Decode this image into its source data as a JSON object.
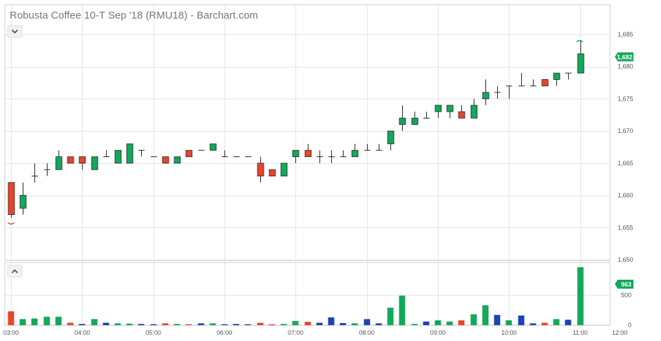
{
  "title": "Robusta Coffee 10-T Sep '18 (RMU18) - Barchart.com",
  "last_price_label": "1,682",
  "last_volume_label": "963",
  "colors": {
    "up": "#13a85a",
    "down": "#e8452c",
    "flat": "#1c44b0",
    "tag": "#13a85a",
    "grid": "#e4e4e4"
  },
  "icons": {
    "collapse_price": "chevron-down-icon",
    "collapse_volume": "chevron-up-icon"
  },
  "chart_data": {
    "type": "candlestick",
    "x_tick_labels": [
      "03:00",
      "04:00",
      "05:00",
      "06:00",
      "07:00",
      "08:00",
      "09:00",
      "10:00",
      "11:00",
      "12:00"
    ],
    "price_axis": {
      "ticks": [
        1650,
        1655,
        1660,
        1665,
        1670,
        1675,
        1680,
        1685
      ],
      "tick_labels": [
        "1,650",
        "1,655",
        "1,660",
        "1,665",
        "1,670",
        "1,675",
        "1,680",
        "1,685"
      ],
      "range": [
        1650,
        1689.5
      ]
    },
    "volume_axis": {
      "ticks": [
        0,
        500
      ],
      "tick_labels": [
        "0",
        "500"
      ],
      "range": [
        0,
        1030
      ]
    },
    "bar_interval_minutes": 10,
    "series": [
      {
        "t": "03:00",
        "o": 1662,
        "h": 1662,
        "l": 1656.5,
        "c": 1657,
        "v": 230,
        "vc": "down"
      },
      {
        "t": "03:10",
        "o": 1658,
        "h": 1662,
        "l": 1657,
        "c": 1660,
        "v": 100,
        "vc": "up"
      },
      {
        "t": "03:20",
        "o": 1663,
        "h": 1665,
        "l": 1662,
        "c": 1663,
        "v": 110,
        "vc": "up"
      },
      {
        "t": "03:30",
        "o": 1664,
        "h": 1665,
        "l": 1663,
        "c": 1664,
        "v": 140,
        "vc": "up"
      },
      {
        "t": "03:40",
        "o": 1664,
        "h": 1667,
        "l": 1664,
        "c": 1666,
        "v": 140,
        "vc": "up"
      },
      {
        "t": "03:50",
        "o": 1666,
        "h": 1666,
        "l": 1665,
        "c": 1665,
        "v": 40,
        "vc": "down"
      },
      {
        "t": "04:00",
        "o": 1666,
        "h": 1666,
        "l": 1664,
        "c": 1665,
        "v": 20,
        "vc": "flat"
      },
      {
        "t": "04:10",
        "o": 1664,
        "h": 1666,
        "l": 1664,
        "c": 1666,
        "v": 100,
        "vc": "up"
      },
      {
        "t": "04:20",
        "o": 1666,
        "h": 1667,
        "l": 1666,
        "c": 1666,
        "v": 40,
        "vc": "flat"
      },
      {
        "t": "04:30",
        "o": 1665,
        "h": 1667,
        "l": 1665,
        "c": 1667,
        "v": 30,
        "vc": "up"
      },
      {
        "t": "04:40",
        "o": 1665,
        "h": 1668,
        "l": 1665,
        "c": 1668,
        "v": 25,
        "vc": "up"
      },
      {
        "t": "04:50",
        "o": 1667,
        "h": 1667,
        "l": 1666,
        "c": 1667,
        "v": 20,
        "vc": "flat"
      },
      {
        "t": "05:00",
        "o": 1666,
        "h": 1666,
        "l": 1666,
        "c": 1666,
        "v": 15,
        "vc": "flat"
      },
      {
        "t": "05:10",
        "o": 1666,
        "h": 1666,
        "l": 1665,
        "c": 1665,
        "v": 30,
        "vc": "down"
      },
      {
        "t": "05:20",
        "o": 1665,
        "h": 1666,
        "l": 1665,
        "c": 1666,
        "v": 20,
        "vc": "up"
      },
      {
        "t": "05:30",
        "o": 1667,
        "h": 1667,
        "l": 1666,
        "c": 1666,
        "v": 15,
        "vc": "down"
      },
      {
        "t": "05:40",
        "o": 1667,
        "h": 1667,
        "l": 1667,
        "c": 1667,
        "v": 30,
        "vc": "flat"
      },
      {
        "t": "05:50",
        "o": 1667,
        "h": 1668,
        "l": 1667,
        "c": 1668,
        "v": 30,
        "vc": "up"
      },
      {
        "t": "06:00",
        "o": 1666,
        "h": 1667,
        "l": 1666,
        "c": 1666,
        "v": 15,
        "vc": "flat"
      },
      {
        "t": "06:10",
        "o": 1666,
        "h": 1666,
        "l": 1666,
        "c": 1666,
        "v": 20,
        "vc": "flat"
      },
      {
        "t": "06:20",
        "o": 1666,
        "h": 1666,
        "l": 1666,
        "c": 1666,
        "v": 15,
        "vc": "flat"
      },
      {
        "t": "06:30",
        "o": 1665,
        "h": 1666,
        "l": 1662,
        "c": 1663,
        "v": 40,
        "vc": "down"
      },
      {
        "t": "06:40",
        "o": 1664,
        "h": 1664,
        "l": 1663,
        "c": 1663,
        "v": 15,
        "vc": "down"
      },
      {
        "t": "06:50",
        "o": 1663,
        "h": 1665,
        "l": 1663,
        "c": 1665,
        "v": 20,
        "vc": "up"
      },
      {
        "t": "07:00",
        "o": 1666,
        "h": 1667,
        "l": 1665,
        "c": 1667,
        "v": 70,
        "vc": "up"
      },
      {
        "t": "07:10",
        "o": 1667,
        "h": 1668,
        "l": 1666,
        "c": 1666,
        "v": 55,
        "vc": "down"
      },
      {
        "t": "07:20",
        "o": 1666,
        "h": 1667,
        "l": 1665,
        "c": 1666,
        "v": 40,
        "vc": "flat"
      },
      {
        "t": "07:30",
        "o": 1666,
        "h": 1667,
        "l": 1665,
        "c": 1666,
        "v": 130,
        "vc": "flat"
      },
      {
        "t": "07:40",
        "o": 1666,
        "h": 1667,
        "l": 1666,
        "c": 1666,
        "v": 35,
        "vc": "flat"
      },
      {
        "t": "07:50",
        "o": 1666,
        "h": 1668,
        "l": 1666,
        "c": 1667,
        "v": 30,
        "vc": "up"
      },
      {
        "t": "08:00",
        "o": 1667,
        "h": 1668,
        "l": 1667,
        "c": 1667,
        "v": 100,
        "vc": "flat"
      },
      {
        "t": "08:10",
        "o": 1667,
        "h": 1668,
        "l": 1667,
        "c": 1667,
        "v": 30,
        "vc": "flat"
      },
      {
        "t": "08:20",
        "o": 1668,
        "h": 1670,
        "l": 1667,
        "c": 1670,
        "v": 290,
        "vc": "up"
      },
      {
        "t": "08:30",
        "o": 1671,
        "h": 1674,
        "l": 1670,
        "c": 1672,
        "v": 490,
        "vc": "up"
      },
      {
        "t": "08:40",
        "o": 1671,
        "h": 1673,
        "l": 1671,
        "c": 1672,
        "v": 20,
        "vc": "up"
      },
      {
        "t": "08:50",
        "o": 1672,
        "h": 1673,
        "l": 1672,
        "c": 1672,
        "v": 60,
        "vc": "flat"
      },
      {
        "t": "09:00",
        "o": 1673,
        "h": 1674,
        "l": 1672,
        "c": 1674,
        "v": 80,
        "vc": "up"
      },
      {
        "t": "09:10",
        "o": 1673,
        "h": 1674,
        "l": 1672,
        "c": 1674,
        "v": 60,
        "vc": "up"
      },
      {
        "t": "09:20",
        "o": 1673,
        "h": 1674,
        "l": 1672,
        "c": 1672,
        "v": 80,
        "vc": "down"
      },
      {
        "t": "09:30",
        "o": 1672,
        "h": 1675,
        "l": 1672,
        "c": 1674,
        "v": 180,
        "vc": "up"
      },
      {
        "t": "09:40",
        "o": 1675,
        "h": 1678,
        "l": 1674,
        "c": 1676,
        "v": 330,
        "vc": "up"
      },
      {
        "t": "09:50",
        "o": 1676,
        "h": 1677,
        "l": 1675,
        "c": 1676,
        "v": 170,
        "vc": "flat"
      },
      {
        "t": "10:00",
        "o": 1677,
        "h": 1677,
        "l": 1675,
        "c": 1677,
        "v": 80,
        "vc": "up"
      },
      {
        "t": "10:10",
        "o": 1677,
        "h": 1679,
        "l": 1677,
        "c": 1677,
        "v": 160,
        "vc": "flat"
      },
      {
        "t": "10:20",
        "o": 1677,
        "h": 1678,
        "l": 1677,
        "c": 1677,
        "v": 30,
        "vc": "flat"
      },
      {
        "t": "10:30",
        "o": 1678,
        "h": 1678,
        "l": 1677,
        "c": 1677,
        "v": 40,
        "vc": "down"
      },
      {
        "t": "10:40",
        "o": 1678,
        "h": 1679,
        "l": 1677,
        "c": 1679,
        "v": 100,
        "vc": "up"
      },
      {
        "t": "10:50",
        "o": 1679,
        "h": 1679,
        "l": 1678,
        "c": 1679,
        "v": 90,
        "vc": "flat"
      },
      {
        "t": "11:00",
        "o": 1679,
        "h": 1684,
        "l": 1679,
        "c": 1682,
        "v": 963,
        "vc": "up"
      }
    ],
    "session_markers": {
      "high": 1684,
      "low": 1656.5
    },
    "grid": true,
    "legend": "none"
  }
}
